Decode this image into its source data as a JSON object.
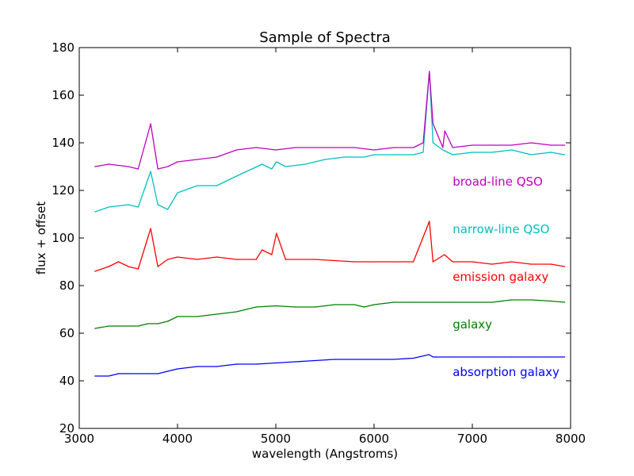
{
  "chart_data": {
    "type": "line",
    "title": "Sample of Spectra",
    "xlabel": "wavelength (Angstroms)",
    "ylabel": "flux + offset",
    "xlim": [
      3000,
      8000
    ],
    "ylim": [
      20,
      180
    ],
    "xticks": [
      3000,
      4000,
      5000,
      6000,
      7000,
      8000
    ],
    "yticks": [
      20,
      40,
      60,
      80,
      100,
      120,
      140,
      160,
      180
    ],
    "grid": false,
    "series": [
      {
        "name": "absorption galaxy",
        "color": "#0000ff",
        "x": [
          3160,
          3300,
          3400,
          3500,
          3600,
          3700,
          3800,
          3900,
          4000,
          4200,
          4400,
          4600,
          4800,
          5000,
          5200,
          5400,
          5600,
          5800,
          6000,
          6200,
          6400,
          6560,
          6600,
          6800,
          7000,
          7200,
          7400,
          7600,
          7800,
          7940
        ],
        "y": [
          42,
          42,
          43,
          43,
          43,
          43,
          43,
          44,
          45,
          46,
          46,
          47,
          47,
          47.5,
          48,
          48.5,
          49,
          49,
          49,
          49,
          49.5,
          51,
          50,
          50,
          50,
          50,
          50,
          50,
          50,
          50
        ]
      },
      {
        "name": "galaxy",
        "color": "#008000",
        "x": [
          3160,
          3300,
          3400,
          3500,
          3600,
          3700,
          3800,
          3900,
          4000,
          4200,
          4400,
          4600,
          4800,
          5000,
          5200,
          5400,
          5600,
          5800,
          5900,
          6000,
          6200,
          6400,
          6600,
          6800,
          7000,
          7200,
          7400,
          7600,
          7800,
          7940
        ],
        "y": [
          62,
          63,
          63,
          63,
          63,
          64,
          64,
          65,
          67,
          67,
          68,
          69,
          71,
          71.5,
          71,
          71,
          72,
          72,
          71,
          72,
          73,
          73,
          73,
          73,
          73,
          73,
          74,
          74,
          73.5,
          73
        ]
      },
      {
        "name": "emission galaxy",
        "color": "#ff0000",
        "x": [
          3160,
          3300,
          3400,
          3500,
          3600,
          3727,
          3800,
          3900,
          4000,
          4200,
          4400,
          4600,
          4800,
          4861,
          4959,
          5007,
          5100,
          5400,
          5800,
          6000,
          6200,
          6400,
          6563,
          6600,
          6716,
          6800,
          7000,
          7200,
          7400,
          7600,
          7800,
          7940
        ],
        "y": [
          86,
          88,
          90,
          88,
          87,
          104,
          88,
          91,
          92,
          91,
          92,
          91,
          91,
          95,
          93,
          102,
          91,
          91,
          90,
          90,
          90,
          90,
          107,
          90,
          93,
          90,
          90,
          89,
          90,
          89,
          89,
          88
        ]
      },
      {
        "name": "narrow-line QSO",
        "color": "#00bfbf",
        "x": [
          3160,
          3300,
          3500,
          3600,
          3727,
          3800,
          3900,
          4000,
          4200,
          4400,
          4600,
          4861,
          4959,
          5007,
          5100,
          5300,
          5500,
          5700,
          5900,
          6000,
          6200,
          6400,
          6500,
          6563,
          6600,
          6700,
          6800,
          7000,
          7200,
          7400,
          7600,
          7800,
          7940
        ],
        "y": [
          111,
          113,
          114,
          113,
          128,
          114,
          112,
          119,
          122,
          122,
          126,
          131,
          129,
          132,
          130,
          131,
          133,
          134,
          134,
          135,
          135,
          135,
          136,
          170,
          140,
          137,
          135,
          136,
          136,
          137,
          135,
          136,
          135
        ]
      },
      {
        "name": "broad-line QSO",
        "color": "#bf00bf",
        "x": [
          3160,
          3300,
          3500,
          3600,
          3727,
          3800,
          3900,
          4000,
          4200,
          4400,
          4600,
          4800,
          5000,
          5200,
          5400,
          5600,
          5800,
          6000,
          6200,
          6400,
          6500,
          6563,
          6600,
          6700,
          6720,
          6800,
          7000,
          7200,
          7400,
          7600,
          7800,
          7940
        ],
        "y": [
          130,
          131,
          130,
          129,
          148,
          129,
          130,
          132,
          133,
          134,
          137,
          138,
          137,
          138,
          138,
          138,
          138,
          137,
          138,
          138,
          140,
          170,
          148,
          138,
          145,
          138,
          139,
          139,
          139,
          140,
          139,
          139
        ]
      }
    ],
    "annotations": [
      {
        "text": "broad-line QSO",
        "x": 6800,
        "y": 122,
        "color": "#bf00bf"
      },
      {
        "text": "narrow-line QSO",
        "x": 6800,
        "y": 102,
        "color": "#00bfbf"
      },
      {
        "text": "emission galaxy",
        "x": 6800,
        "y": 82,
        "color": "#ff0000"
      },
      {
        "text": "galaxy",
        "x": 6800,
        "y": 62,
        "color": "#008000"
      },
      {
        "text": "absorption galaxy",
        "x": 6800,
        "y": 42,
        "color": "#0000ff"
      }
    ]
  }
}
